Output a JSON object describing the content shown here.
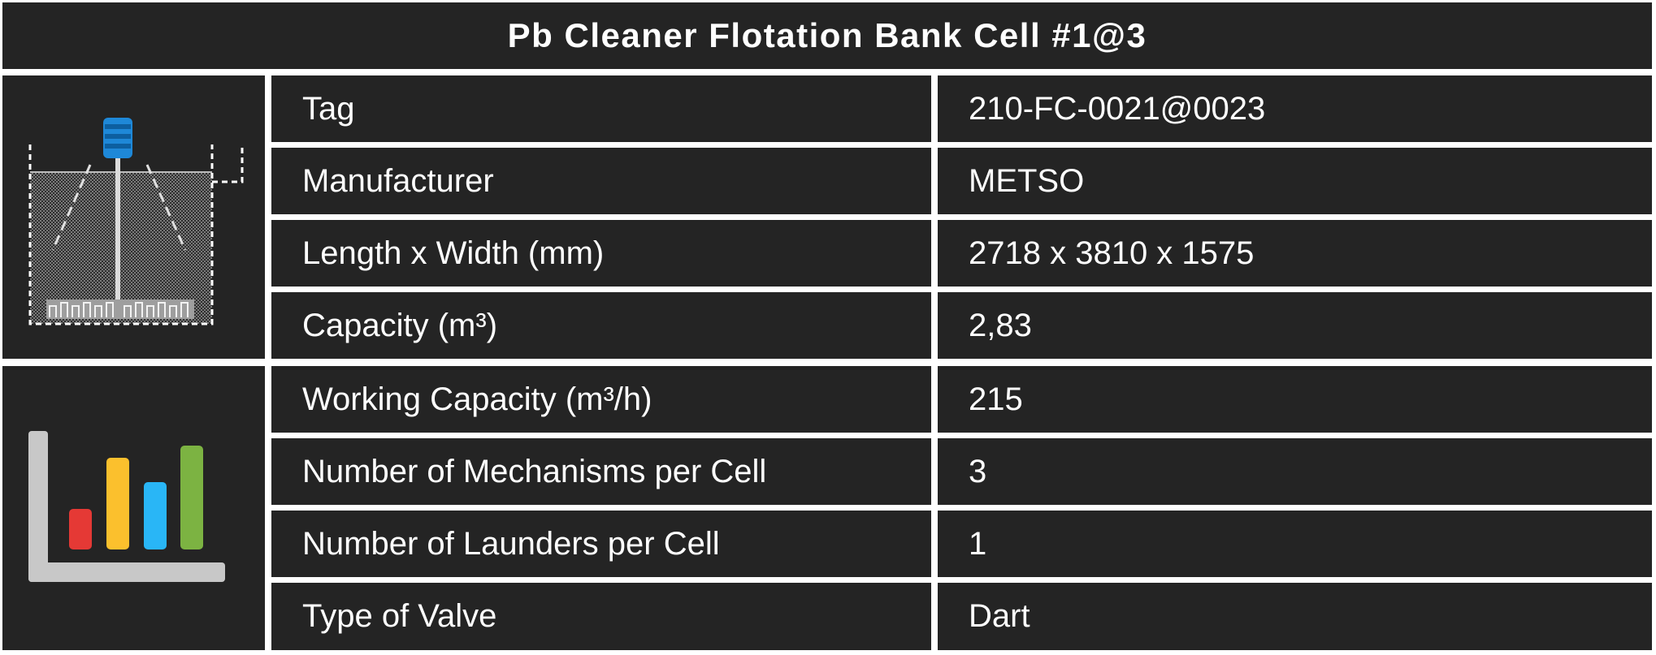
{
  "title": "Pb Cleaner Flotation Bank Cell #1@3",
  "colors": {
    "background": "#242424",
    "border": "#ffffff",
    "text": "#ffffff",
    "motor_blue": "#1e88d8",
    "bar_red": "#e53935",
    "bar_yellow": "#fbc02d",
    "bar_blue": "#29b6f6",
    "bar_green": "#7cb342",
    "axis_gray": "#c8c8c8"
  },
  "icons": {
    "equipment": "flotation-cell-icon",
    "chart": "bar-chart-icon"
  },
  "rows": [
    {
      "label": "Tag",
      "value": "210-FC-0021@0023"
    },
    {
      "label": "Manufacturer",
      "value": "METSO"
    },
    {
      "label": "Length x Width (mm)",
      "value": "2718 x 3810 x 1575"
    },
    {
      "label": "Capacity (m³)",
      "value": "2,83"
    },
    {
      "label": "Working Capacity (m³/h)",
      "value": "215"
    },
    {
      "label": "Number of Mechanisms per Cell",
      "value": "3"
    },
    {
      "label": "Number of Launders per Cell",
      "value": "1"
    },
    {
      "label": "Type of Valve",
      "value": "Dart"
    }
  ]
}
